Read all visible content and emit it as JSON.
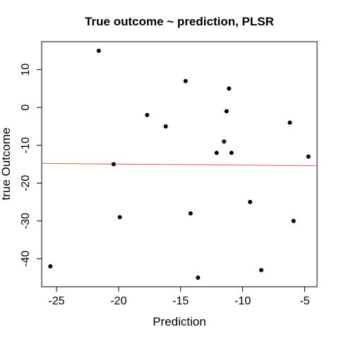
{
  "chart_data": {
    "type": "scatter",
    "title": "True outcome ~ prediction, PLSR",
    "xlabel": "Prediction",
    "ylabel": "true Outcome",
    "xlim": [
      -26.2,
      -4.0
    ],
    "ylim": [
      -47.4,
      17.4
    ],
    "xticks": [
      -25,
      -20,
      -15,
      -10,
      -5
    ],
    "yticks": [
      -40,
      -30,
      -20,
      -10,
      0,
      10
    ],
    "x_tick_labels": [
      "-25",
      "-20",
      "-15",
      "-10",
      "-5"
    ],
    "y_tick_labels": [
      "-40",
      "-30",
      "-20",
      "-10",
      "0",
      "10"
    ],
    "grid": false,
    "points": [
      {
        "x": -21.6,
        "y": 15
      },
      {
        "x": -14.6,
        "y": 7
      },
      {
        "x": -11.1,
        "y": 5
      },
      {
        "x": -17.7,
        "y": -2
      },
      {
        "x": -11.3,
        "y": -1
      },
      {
        "x": -16.2,
        "y": -5
      },
      {
        "x": -6.2,
        "y": -4
      },
      {
        "x": -11.5,
        "y": -9
      },
      {
        "x": -12.1,
        "y": -12
      },
      {
        "x": -10.9,
        "y": -12
      },
      {
        "x": -4.7,
        "y": -13
      },
      {
        "x": -20.4,
        "y": -15
      },
      {
        "x": -9.4,
        "y": -25
      },
      {
        "x": -14.2,
        "y": -28
      },
      {
        "x": -19.9,
        "y": -29
      },
      {
        "x": -5.9,
        "y": -30
      },
      {
        "x": -25.5,
        "y": -42
      },
      {
        "x": -8.5,
        "y": -43
      },
      {
        "x": -13.6,
        "y": -45
      }
    ],
    "fit_line": {
      "color": "#e8574e",
      "x": [
        -26.2,
        -4.0
      ],
      "y": [
        -14.8,
        -15.4
      ]
    },
    "point_color": "#000000"
  }
}
